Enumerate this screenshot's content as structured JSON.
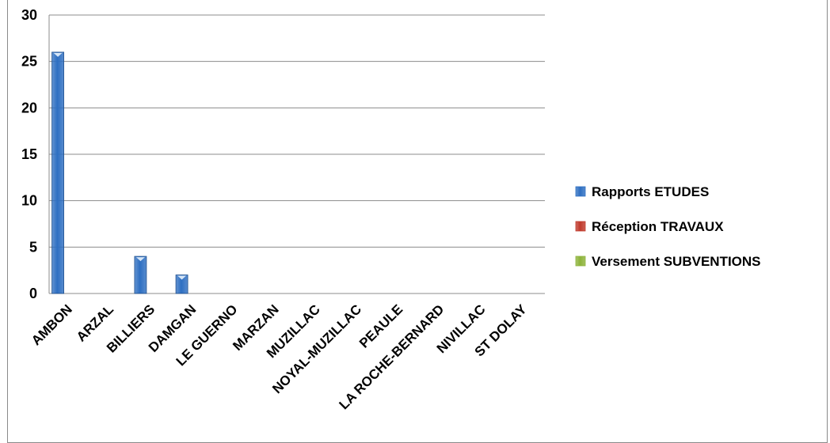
{
  "chart_data": {
    "type": "bar",
    "categories": [
      "AMBON",
      "ARZAL",
      "BILLIERS",
      "DAMGAN",
      "LE GUERNO",
      "MARZAN",
      "MUZILLAC",
      "NOYAL-MUZILLAC",
      "PEAULE",
      "LA ROCHE-BERNARD",
      "NIVILLAC",
      "ST DOLAY"
    ],
    "series": [
      {
        "name": "Rapports ETUDES",
        "color": "#2e6fc2",
        "values": [
          26,
          0,
          4,
          2,
          0,
          0,
          0,
          0,
          0,
          0,
          0,
          0
        ]
      },
      {
        "name": "Réception TRAVAUX",
        "color": "#c0392b",
        "values": [
          0,
          0,
          0,
          0,
          0,
          0,
          0,
          0,
          0,
          0,
          0,
          0
        ]
      },
      {
        "name": "Versement SUBVENTIONS",
        "color": "#8db33a",
        "values": [
          0,
          0,
          0,
          0,
          0,
          0,
          0,
          0,
          0,
          0,
          0,
          0
        ]
      }
    ],
    "ylim": [
      0,
      30
    ],
    "yticks": [
      "0",
      "5",
      "10",
      "15",
      "20",
      "25",
      "30"
    ],
    "grid": true,
    "legend_position": "right"
  }
}
